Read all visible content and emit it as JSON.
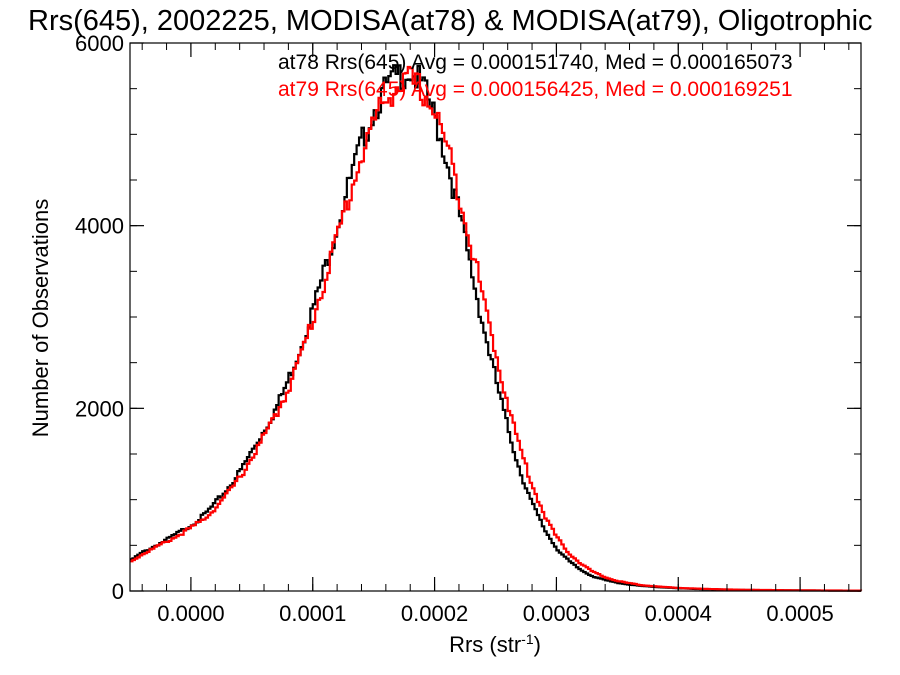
{
  "chart_data": {
    "type": "histogram",
    "title": "Rrs(645), 2002225, MODISA(at78) & MODISA(at79), Oligotrophic",
    "xlabel": "Rrs (str",
    "xlabel_superscript": "-1",
    "xlabel_suffix": ")",
    "ylabel": "Number of Observations",
    "xlim": [
      -5e-05,
      0.00055
    ],
    "ylim": [
      0,
      6000
    ],
    "x_ticks": [
      0.0,
      0.0001,
      0.0002,
      0.0003,
      0.0004,
      0.0005
    ],
    "x_tick_labels": [
      "0.0000",
      "0.0001",
      "0.0002",
      "0.0003",
      "0.0004",
      "0.0005"
    ],
    "y_ticks": [
      0,
      2000,
      4000,
      6000
    ],
    "y_tick_labels": [
      "0",
      "2000",
      "4000",
      "6000"
    ],
    "grid": false,
    "legend_position": "top-right",
    "series": [
      {
        "name": "at78",
        "color": "#000000",
        "legend": "at78 Rrs(645) Avg = 0.000151740, Med = 0.000165073",
        "x": [
          -5e-05,
          -4e-05,
          -3e-05,
          -2e-05,
          -1e-05,
          0.0,
          1e-05,
          2e-05,
          3e-05,
          4e-05,
          5e-05,
          6e-05,
          7e-05,
          8e-05,
          9e-05,
          0.0001,
          0.00011,
          0.00012,
          0.00013,
          0.00014,
          0.00015,
          0.00016,
          0.00017,
          0.00018,
          0.00019,
          0.0002,
          0.00021,
          0.00022,
          0.00023,
          0.00024,
          0.00025,
          0.00026,
          0.00027,
          0.00028,
          0.00029,
          0.0003,
          0.00031,
          0.00032,
          0.00033,
          0.00034,
          0.00035,
          0.00036,
          0.00037,
          0.00038,
          0.00039,
          0.0004,
          0.00042,
          0.00045,
          0.0005,
          0.00055
        ],
        "y": [
          330,
          420,
          490,
          560,
          640,
          720,
          820,
          960,
          1120,
          1300,
          1530,
          1760,
          2000,
          2310,
          2670,
          3080,
          3530,
          4000,
          4460,
          4900,
          5250,
          5500,
          5640,
          5700,
          5530,
          5200,
          4720,
          4150,
          3520,
          2900,
          2330,
          1790,
          1320,
          960,
          680,
          470,
          330,
          230,
          160,
          120,
          90,
          70,
          55,
          45,
          38,
          30,
          20,
          12,
          6,
          3
        ]
      },
      {
        "name": "at79",
        "color": "#ff0000",
        "legend": "at79 Rrs(645) Avg = 0.000156425, Med = 0.000169251",
        "x": [
          -5e-05,
          -4e-05,
          -3e-05,
          -2e-05,
          -1e-05,
          0.0,
          1e-05,
          2e-05,
          3e-05,
          4e-05,
          5e-05,
          6e-05,
          7e-05,
          8e-05,
          9e-05,
          0.0001,
          0.00011,
          0.00012,
          0.00013,
          0.00014,
          0.00015,
          0.00016,
          0.00017,
          0.00018,
          0.00019,
          0.0002,
          0.00021,
          0.00022,
          0.00023,
          0.00024,
          0.00025,
          0.00026,
          0.00027,
          0.00028,
          0.00029,
          0.0003,
          0.00031,
          0.00032,
          0.00033,
          0.00034,
          0.00035,
          0.00036,
          0.00037,
          0.00038,
          0.00039,
          0.0004,
          0.00042,
          0.00045,
          0.0005,
          0.00055
        ],
        "y": [
          320,
          400,
          470,
          540,
          610,
          690,
          780,
          910,
          1060,
          1240,
          1460,
          1690,
          1930,
          2220,
          2570,
          2970,
          3410,
          3870,
          4330,
          4760,
          5130,
          5390,
          5540,
          5580,
          5480,
          5260,
          4870,
          4370,
          3800,
          3200,
          2620,
          2060,
          1570,
          1160,
          840,
          590,
          420,
          300,
          210,
          150,
          110,
          85,
          65,
          52,
          42,
          34,
          24,
          14,
          7,
          4
        ]
      }
    ]
  }
}
